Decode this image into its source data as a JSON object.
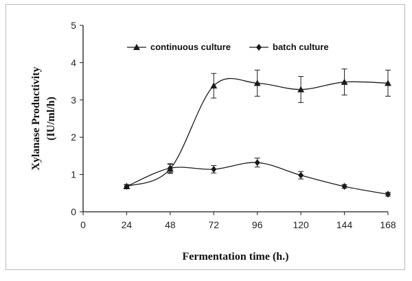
{
  "chart_data": {
    "type": "line",
    "x": [
      24,
      48,
      72,
      96,
      120,
      144,
      168
    ],
    "xlabel": "Fermentation time (h.)",
    "ylabel_line1": "Xylanase Productivity",
    "ylabel_line2": "(IU/ml/h)",
    "xlim": [
      0,
      168
    ],
    "ylim": [
      0,
      5
    ],
    "x_ticks": [
      0,
      24,
      48,
      72,
      96,
      120,
      144,
      168
    ],
    "y_ticks": [
      0,
      1,
      2,
      3,
      4,
      5
    ],
    "grid": false,
    "legend_position": "top",
    "series": [
      {
        "name": "continuous culture",
        "marker": "triangle",
        "values": [
          0.68,
          1.15,
          3.38,
          3.45,
          3.28,
          3.48,
          3.45
        ],
        "errors": [
          0.05,
          0.12,
          0.33,
          0.35,
          0.35,
          0.35,
          0.35
        ]
      },
      {
        "name": "batch culture",
        "marker": "diamond",
        "values": [
          0.68,
          1.17,
          1.14,
          1.32,
          0.98,
          0.68,
          0.47
        ],
        "errors": [
          0.05,
          0.12,
          0.1,
          0.12,
          0.1,
          0.05,
          0.05
        ]
      }
    ],
    "colors": {
      "line": "#1a1a1a",
      "axis": "#1a1a1a"
    }
  }
}
